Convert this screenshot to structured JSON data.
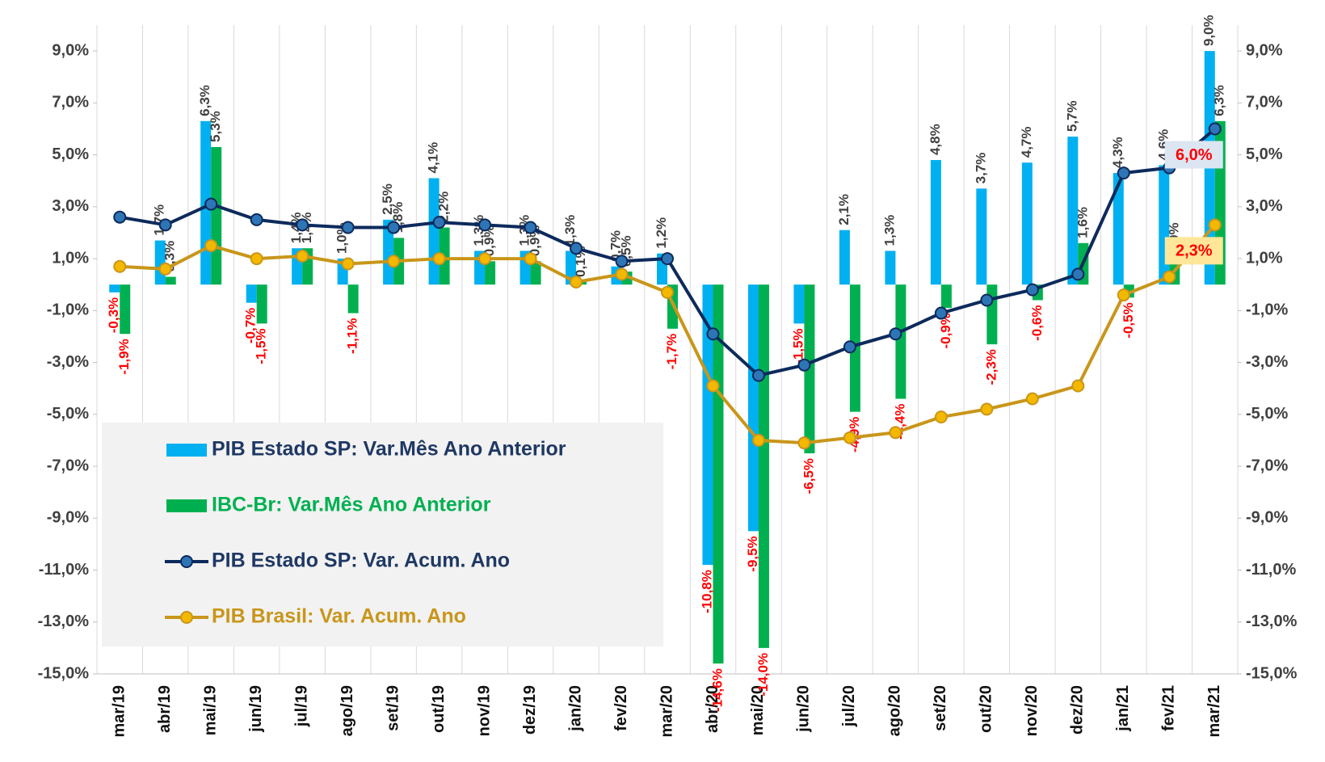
{
  "chart_data": {
    "type": "bar",
    "categories": [
      "mar/19",
      "abr/19",
      "mai/19",
      "jun/19",
      "jul/19",
      "ago/19",
      "set/19",
      "out/19",
      "nov/19",
      "dez/19",
      "jan/20",
      "fev/20",
      "mar/20",
      "abr/20",
      "mai/20",
      "jun/20",
      "jul/20",
      "ago/20",
      "set/20",
      "out/20",
      "nov/20",
      "dez/20",
      "jan/21",
      "fev/21",
      "mar/21"
    ],
    "series": [
      {
        "name": "PIB Estado SP: Var.Mês Ano Anterior",
        "type": "bar",
        "color": "#00b0f0",
        "legend_color": "#1f3864",
        "values": [
          -0.3,
          1.7,
          6.3,
          -0.7,
          1.4,
          1.0,
          2.5,
          4.1,
          1.3,
          1.3,
          1.3,
          0.7,
          1.2,
          -10.8,
          -9.5,
          -1.5,
          2.1,
          1.3,
          4.8,
          3.7,
          4.7,
          5.7,
          4.3,
          4.6,
          9.0
        ],
        "value_labels": [
          "-0,3%",
          "1,7%",
          "6,3%",
          "-0,7%",
          "1,4%",
          "1,0%",
          "2,5%",
          "4,1%",
          "1,3%",
          "1,3%",
          "1,3%",
          "0,7%",
          "1,2%",
          "-10,8%",
          "-9,5%",
          "-1,5%",
          "2,1%",
          "1,3%",
          "4,8%",
          "3,7%",
          "4,7%",
          "5,7%",
          "4,3%",
          "4,6%",
          "9,0%"
        ]
      },
      {
        "name": "IBC-Br: Var.Mês Ano Anterior",
        "type": "bar",
        "color": "#00b050",
        "legend_color": "#00b050",
        "values": [
          -1.9,
          0.3,
          5.3,
          -1.5,
          1.4,
          -1.1,
          1.8,
          2.2,
          0.9,
          0.9,
          0.1,
          0.5,
          -1.7,
          -14.6,
          -14.0,
          -6.5,
          -4.9,
          -4.4,
          -0.9,
          -2.3,
          -0.6,
          1.6,
          -0.5,
          1.0,
          6.3
        ],
        "value_labels": [
          "-1,9%",
          "0,3%",
          "5,3%",
          "-1,5%",
          "1,4%",
          "-1,1%",
          "1,8%",
          "2,2%",
          "0,9%",
          "0,9%",
          "0,1%",
          "0,5%",
          "-1,7%",
          "-14,6%",
          "-14,0%",
          "-6,5%",
          "-4,9%",
          "-4,4%",
          "-0,9%",
          "-2,3%",
          "-0,6%",
          "1,6%",
          "-0,5%",
          "1,0%",
          "6,3%"
        ]
      },
      {
        "name": "PIB Estado SP: Var. Acum. Ano",
        "type": "line",
        "color": "#0d2a5c",
        "marker_color": "#2e75b6",
        "legend_color": "#1f3864",
        "label_box": "#dce6f2",
        "values": [
          2.6,
          2.3,
          3.1,
          2.5,
          2.3,
          2.2,
          2.2,
          2.4,
          2.3,
          2.2,
          1.4,
          0.9,
          1.0,
          -1.9,
          -3.5,
          -3.1,
          -2.4,
          -1.9,
          -1.1,
          -0.6,
          -0.2,
          0.4,
          4.3,
          4.5,
          6.0
        ],
        "value_labels": [
          null,
          null,
          null,
          null,
          null,
          null,
          null,
          null,
          null,
          null,
          null,
          null,
          null,
          null,
          null,
          null,
          null,
          null,
          null,
          null,
          null,
          null,
          null,
          null,
          "6,0%"
        ]
      },
      {
        "name": "PIB Brasil: Var. Acum. Ano",
        "type": "line",
        "color": "#c9961a",
        "marker_color": "#f5b800",
        "legend_color": "#c9961a",
        "label_box": "#ffe699",
        "values": [
          0.7,
          0.6,
          1.5,
          1.0,
          1.1,
          0.8,
          0.9,
          1.0,
          1.0,
          1.0,
          0.1,
          0.4,
          -0.3,
          -3.9,
          -6.0,
          -6.1,
          -5.9,
          -5.7,
          -5.1,
          -4.8,
          -4.4,
          -3.9,
          -0.4,
          0.3,
          2.3
        ],
        "value_labels": [
          null,
          null,
          null,
          null,
          null,
          null,
          null,
          null,
          null,
          null,
          null,
          null,
          null,
          null,
          null,
          null,
          null,
          null,
          null,
          null,
          null,
          null,
          null,
          null,
          "2,3%"
        ]
      }
    ],
    "label_colors": {
      "positive": "#404040",
      "negative": "#ff0000"
    },
    "ylim": [
      -15,
      10
    ],
    "yticks": [
      {
        "value": -15,
        "label": "-15,0%"
      },
      {
        "value": -13,
        "label": "-13,0%"
      },
      {
        "value": -11,
        "label": "-11,0%"
      },
      {
        "value": -9,
        "label": "-9,0%"
      },
      {
        "value": -7,
        "label": "-7,0%"
      },
      {
        "value": -5,
        "label": "-5,0%"
      },
      {
        "value": -3,
        "label": "-3,0%"
      },
      {
        "value": -1,
        "label": "-1,0%"
      },
      {
        "value": 1,
        "label": "1,0%"
      },
      {
        "value": 3,
        "label": "3,0%"
      },
      {
        "value": 5,
        "label": "5,0%"
      },
      {
        "value": 7,
        "label": "7,0%"
      },
      {
        "value": 9,
        "label": "9,0%"
      }
    ],
    "y2lim": [
      -15,
      10
    ],
    "y2ticks": [
      {
        "value": -15,
        "label": "-15,0%"
      },
      {
        "value": -13,
        "label": "-13,0%"
      },
      {
        "value": -11,
        "label": "-11,0%"
      },
      {
        "value": -9,
        "label": "-9,0%"
      },
      {
        "value": -7,
        "label": "-7,0%"
      },
      {
        "value": -5,
        "label": "-5,0%"
      },
      {
        "value": -3,
        "label": "-3,0%"
      },
      {
        "value": -1,
        "label": "-1,0%"
      },
      {
        "value": 1,
        "label": "1,0%"
      },
      {
        "value": 3,
        "label": "3,0%"
      },
      {
        "value": 5,
        "label": "5,0%"
      },
      {
        "value": 7,
        "label": "7,0%"
      },
      {
        "value": 9,
        "label": "9,0%"
      }
    ],
    "legend": "lower left"
  }
}
